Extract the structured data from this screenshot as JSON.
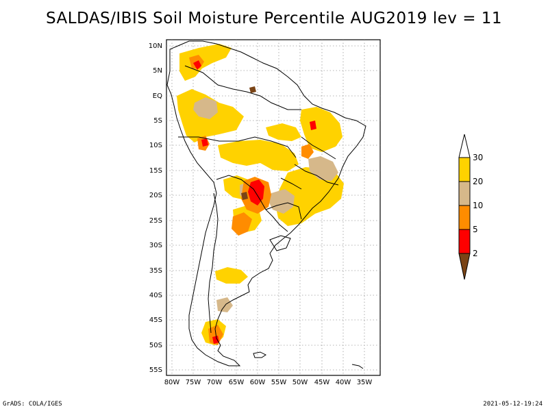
{
  "title": "SALDAS/IBIS Soil Moisture Percentile AUG2019 lev = 11",
  "footer_left": "GrADS: COLA/IGES",
  "footer_right": "2021-05-12-19:24",
  "lat_labels": [
    "10N",
    "5N",
    "EQ",
    "5S",
    "10S",
    "15S",
    "20S",
    "25S",
    "30S",
    "35S",
    "40S",
    "45S",
    "50S",
    "55S"
  ],
  "lon_labels": [
    "80W",
    "75W",
    "70W",
    "65W",
    "60W",
    "55W",
    "50W",
    "45W",
    "40W",
    "35W"
  ],
  "legend": {
    "labels": [
      "2",
      "5",
      "10",
      "20",
      "30"
    ],
    "colors": {
      "lt2": "#7a4416",
      "2to5": "#ff0000",
      "5to10": "#ff8c00",
      "10to20": "#d6b88a",
      "20to30": "#ffd200",
      "gt30": "#ffffff"
    }
  }
}
